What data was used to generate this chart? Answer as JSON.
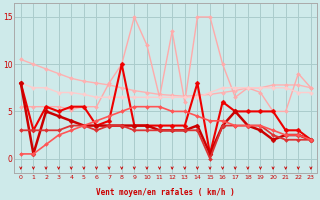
{
  "xlabel": "Vent moyen/en rafales ( km/h )",
  "x": [
    0,
    1,
    2,
    3,
    4,
    5,
    6,
    7,
    8,
    9,
    10,
    11,
    12,
    13,
    14,
    15,
    16,
    17,
    18,
    19,
    20,
    21,
    22,
    23
  ],
  "bg_color": "#ceeaea",
  "grid_color": "#aacccc",
  "series": [
    {
      "y": [
        10.5,
        10.0,
        9.5,
        9.0,
        8.5,
        8.2,
        8.0,
        7.8,
        7.5,
        7.2,
        7.0,
        6.8,
        6.7,
        6.6,
        6.7,
        6.8,
        7.0,
        7.2,
        7.5,
        7.5,
        7.8,
        7.8,
        7.8,
        7.5
      ],
      "color": "#ffb0b0",
      "linewidth": 1.0,
      "marker": "D",
      "markersize": 2.0
    },
    {
      "y": [
        5.5,
        5.5,
        5.5,
        5.5,
        5.2,
        5.5,
        5.5,
        8.0,
        10.0,
        15.0,
        12.0,
        6.5,
        13.5,
        6.0,
        15.0,
        15.0,
        10.0,
        6.5,
        7.5,
        7.0,
        5.0,
        5.0,
        9.0,
        7.5
      ],
      "color": "#ffaaaa",
      "linewidth": 1.0,
      "marker": "D",
      "markersize": 2.0
    },
    {
      "y": [
        8.0,
        7.5,
        7.5,
        7.0,
        7.0,
        6.8,
        6.5,
        6.5,
        6.5,
        6.5,
        6.5,
        6.5,
        6.5,
        6.5,
        6.5,
        7.0,
        7.5,
        7.5,
        7.5,
        7.5,
        7.5,
        7.5,
        7.0,
        7.0
      ],
      "color": "#ffcccc",
      "linewidth": 1.0,
      "marker": "D",
      "markersize": 2.0
    },
    {
      "y": [
        8.0,
        3.0,
        5.5,
        5.0,
        5.5,
        5.5,
        3.5,
        4.0,
        10.0,
        3.5,
        3.5,
        3.5,
        3.5,
        3.5,
        8.0,
        0.5,
        6.0,
        5.0,
        5.0,
        5.0,
        5.0,
        3.0,
        3.0,
        2.0
      ],
      "color": "#ee0000",
      "linewidth": 1.5,
      "marker": "D",
      "markersize": 2.5
    },
    {
      "y": [
        8.0,
        0.5,
        5.0,
        4.5,
        4.0,
        3.5,
        3.5,
        3.5,
        3.5,
        3.5,
        3.5,
        3.0,
        3.0,
        3.0,
        3.5,
        0.5,
        3.5,
        5.0,
        3.5,
        3.0,
        2.0,
        2.5,
        2.5,
        2.0
      ],
      "color": "#cc0000",
      "linewidth": 1.8,
      "marker": "D",
      "markersize": 2.5
    },
    {
      "y": [
        3.0,
        3.0,
        3.0,
        3.0,
        3.5,
        3.5,
        3.0,
        3.5,
        3.5,
        3.0,
        3.0,
        3.0,
        3.0,
        3.0,
        3.0,
        0.0,
        3.5,
        3.5,
        3.5,
        3.5,
        2.5,
        2.0,
        2.0,
        2.0
      ],
      "color": "#dd3333",
      "linewidth": 1.3,
      "marker": "D",
      "markersize": 2.0
    },
    {
      "y": [
        0.5,
        0.5,
        1.5,
        2.5,
        3.0,
        3.5,
        4.0,
        4.5,
        5.0,
        5.5,
        5.5,
        5.5,
        5.0,
        5.0,
        4.5,
        4.0,
        4.0,
        3.5,
        3.5,
        3.5,
        3.0,
        2.5,
        2.5,
        2.0
      ],
      "color": "#ff5555",
      "linewidth": 1.2,
      "marker": "D",
      "markersize": 2.0
    }
  ],
  "ylim": [
    -1.5,
    16.5
  ],
  "yticks": [
    0,
    5,
    10,
    15
  ],
  "xlim": [
    -0.5,
    23.5
  ],
  "arrow_color": "#cc0000",
  "xlabel_color": "#cc0000",
  "tick_color": "#cc0000"
}
